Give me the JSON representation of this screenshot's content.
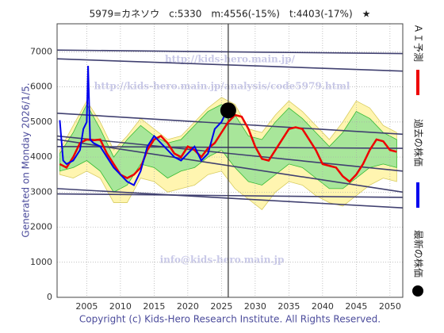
{
  "chart_data": {
    "type": "line",
    "title": "5979=カネソウ　c:5330　m:4556(-15%)　t:4403(-17%)　★",
    "side_label": "Generated on Monday 2026/1/5.",
    "footer": "Copyright (c) Kids-Hero Research Institute. All Rights Reserved.",
    "watermarks": [
      "http://kids-hero.main.jp/",
      "http://kids-hero.main.jp/analysis/code5979.html",
      "info@kids-hero.main.jp"
    ],
    "xlim": [
      2000.6,
      2051.9
    ],
    "ylim": [
      0,
      7800
    ],
    "xticks": [
      2005,
      2010,
      2015,
      2020,
      2025,
      2030,
      2035,
      2040,
      2045,
      2050
    ],
    "yticks": [
      0,
      1000,
      2000,
      3000,
      4000,
      5000,
      6000,
      7000
    ],
    "grid": true,
    "band_x": [
      2001,
      2003,
      2005,
      2007,
      2009,
      2011,
      2013,
      2015,
      2017,
      2019,
      2021,
      2023,
      2025,
      2027,
      2029,
      2031,
      2033,
      2035,
      2037,
      2039,
      2041,
      2043,
      2045,
      2047,
      2049,
      2051
    ],
    "bands": [
      {
        "color": "#fff5b0",
        "upper": [
          4200,
          4900,
          5600,
          5000,
          4200,
          4600,
          5100,
          4800,
          4500,
          4600,
          5000,
          5400,
          5700,
          5500,
          4800,
          4700,
          5200,
          5600,
          5300,
          4900,
          4500,
          5000,
          5600,
          5400,
          4900,
          4700
        ],
        "lower": [
          3500,
          3400,
          3600,
          3400,
          2700,
          2700,
          3400,
          3300,
          3000,
          3100,
          3200,
          3500,
          3600,
          3100,
          2800,
          2500,
          3000,
          3300,
          3200,
          2900,
          2700,
          2600,
          2900,
          3200,
          3400,
          3300
        ]
      },
      {
        "color": "#a8e69a",
        "upper": [
          4100,
          4700,
          5500,
          4800,
          4000,
          4500,
          4900,
          4600,
          4400,
          4500,
          4900,
          5300,
          5500,
          5200,
          4600,
          4500,
          5000,
          5400,
          5100,
          4700,
          4300,
          4700,
          5300,
          5100,
          4700,
          4500
        ],
        "lower": [
          3600,
          3700,
          3900,
          3600,
          3000,
          3200,
          3800,
          3700,
          3400,
          3600,
          3700,
          4000,
          4200,
          3700,
          3300,
          3200,
          3500,
          3800,
          3700,
          3400,
          3100,
          3100,
          3400,
          3700,
          3800,
          3700
        ]
      }
    ],
    "trend_lines": [
      {
        "x": [
          2000.6,
          2051.9
        ],
        "values": [
          7050,
          6950
        ]
      },
      {
        "x": [
          2000.6,
          2051.9
        ],
        "values": [
          6800,
          6450
        ]
      },
      {
        "x": [
          2000.6,
          2051.9
        ],
        "values": [
          5250,
          4650
        ]
      },
      {
        "x": [
          2000.6,
          2051.9
        ],
        "values": [
          4600,
          3600
        ]
      },
      {
        "x": [
          2000.6,
          2051.9
        ],
        "values": [
          4300,
          4250
        ]
      },
      {
        "x": [
          2000.6,
          2051.9
        ],
        "values": [
          4500,
          3000
        ]
      },
      {
        "x": [
          2000.6,
          2051.9
        ],
        "values": [
          3100,
          2550
        ]
      },
      {
        "x": [
          2000.6,
          2051.9
        ],
        "values": [
          2950,
          2850
        ]
      }
    ],
    "vline": 2026,
    "series": [
      {
        "name": "ＡＩ予測",
        "color": "#ee0000",
        "marker": "line",
        "x": [
          2001,
          2002,
          2003,
          2004,
          2005,
          2006,
          2007,
          2008,
          2009,
          2010,
          2011,
          2012,
          2013,
          2014,
          2015,
          2016,
          2017,
          2018,
          2019,
          2020,
          2021,
          2022,
          2023,
          2024,
          2025,
          2026,
          2027,
          2028,
          2029,
          2030,
          2031,
          2032,
          2033,
          2034,
          2035,
          2036,
          2037,
          2038,
          2039,
          2040,
          2041,
          2042,
          2043,
          2044,
          2045,
          2046,
          2047,
          2048,
          2049,
          2050,
          2051
        ],
        "values": [
          3800,
          3700,
          4000,
          4400,
          4500,
          4480,
          4500,
          4100,
          3800,
          3500,
          3400,
          3500,
          3700,
          4200,
          4500,
          4600,
          4400,
          4100,
          4000,
          4300,
          4200,
          4000,
          4250,
          4400,
          4700,
          5000,
          5200,
          5150,
          4800,
          4300,
          3950,
          3900,
          4200,
          4500,
          4800,
          4850,
          4800,
          4500,
          4200,
          3800,
          3750,
          3700,
          3450,
          3300,
          3500,
          3800,
          4200,
          4500,
          4450,
          4200,
          4150
        ]
      },
      {
        "name": "過去の株価",
        "color": "#0000ee",
        "marker": "line",
        "x": [
          2001,
          2001.5,
          2002,
          2003,
          2004,
          2004.5,
          2005,
          2005.2,
          2005.5,
          2006,
          2007,
          2008,
          2009,
          2010,
          2011,
          2012,
          2013,
          2014,
          2015,
          2016,
          2017,
          2018,
          2019,
          2020,
          2021,
          2022,
          2023,
          2024,
          2025,
          2025.8
        ],
        "values": [
          5050,
          3900,
          3800,
          3900,
          4200,
          4800,
          5000,
          6600,
          4500,
          4400,
          4300,
          4000,
          3700,
          3500,
          3300,
          3200,
          3600,
          4300,
          4600,
          4400,
          4200,
          4000,
          3900,
          4100,
          4300,
          3900,
          4100,
          4800,
          5000,
          5330
        ]
      },
      {
        "name": "最新の株価",
        "color": "#000000",
        "marker": "point",
        "x": [
          2026
        ],
        "values": [
          5330
        ]
      }
    ]
  }
}
